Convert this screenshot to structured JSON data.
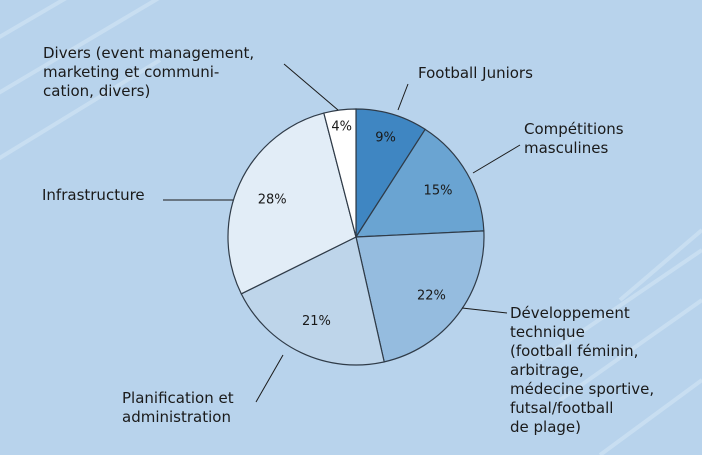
{
  "colors": {
    "background": "#b8d3ec",
    "stripe": "#d6e7f6",
    "outline": "#2f3b48",
    "leader": "#1a1a1a"
  },
  "chart_data": {
    "type": "pie",
    "title": "",
    "start": "12 o'clock, clockwise",
    "slices": [
      {
        "key": "juniors",
        "percent_label": "9%",
        "value": 9,
        "color": "#3f86c2",
        "label_lines": [
          "Football Juniors"
        ]
      },
      {
        "key": "competitions",
        "percent_label": "15%",
        "value": 15,
        "color": "#6aa4d2",
        "label_lines": [
          "Compétitions",
          "masculines"
        ]
      },
      {
        "key": "developpement",
        "percent_label": "22%",
        "value": 22,
        "color": "#95bcdf",
        "label_lines": [
          "Développement",
          "technique",
          "(football féminin,",
          "arbitrage,",
          "médecine sportive,",
          "futsal/football",
          "de plage)"
        ]
      },
      {
        "key": "planification",
        "percent_label": "21%",
        "value": 21,
        "color": "#bed5ea",
        "label_lines": [
          "Planification et",
          "administration"
        ]
      },
      {
        "key": "infrastructure",
        "percent_label": "28%",
        "value": 28,
        "color": "#e2edf7",
        "label_lines": [
          "Infrastructure"
        ]
      },
      {
        "key": "divers",
        "percent_label": "4%",
        "value": 4,
        "color": "#ffffff",
        "label_lines": [
          "Divers (event management,",
          "marketing et communi-",
          "cation, divers)"
        ]
      }
    ]
  }
}
